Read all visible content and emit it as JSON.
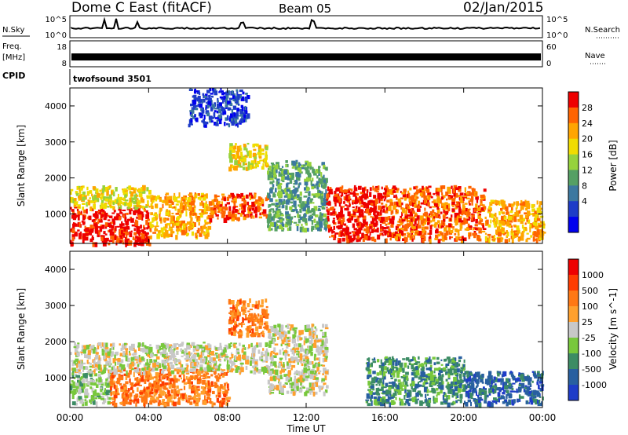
{
  "header": {
    "station": "Dome C East (fitACF)",
    "beam": "Beam 05",
    "date": "02/Jan/2015"
  },
  "top_panels": {
    "nsky_label": "N.Sky",
    "nsky_ticks": [
      "10^5",
      "10^0"
    ],
    "nsearch_label": "N.Search",
    "nsearch_ticks": [
      "10^5",
      "10^0"
    ],
    "freq_label": "Freq.",
    "freq_unit": "[MHz]",
    "freq_ticks": [
      "18",
      "8"
    ],
    "nave_label": "Nave",
    "nave_ticks": [
      "60",
      "0"
    ],
    "cpid_label": "CPID",
    "cpid_value": "twofsound 3501"
  },
  "colors": {
    "power_scale": [
      "#0000ee",
      "#1e3cc8",
      "#3c78a0",
      "#55a064",
      "#96d23c",
      "#f0dc00",
      "#ffa500",
      "#ff6400",
      "#ee0000"
    ],
    "velocity_scale": [
      "#1e3cc8",
      "#285fa0",
      "#3c8c64",
      "#78c83c",
      "#c8c8c8",
      "#ffa02d",
      "#ff7814",
      "#ff3c00",
      "#ee0000"
    ]
  },
  "chart_data": [
    {
      "type": "heatmap",
      "name": "power-panel",
      "xlabel": "",
      "ylabel": "Slant Range [km]",
      "x_ticks": [
        "00:00",
        "04:00",
        "08:00",
        "12:00",
        "16:00",
        "20:00",
        "00:00"
      ],
      "y_ticks": [
        1000,
        2000,
        3000,
        4000
      ],
      "xlim": [
        0,
        24
      ],
      "ylim": [
        180,
        4500
      ],
      "colorbar": {
        "label": "Power [dB]",
        "ticks": [
          "28",
          "24",
          "20",
          "16",
          "12",
          "8",
          "4"
        ]
      },
      "regions": [
        {
          "x": [
            0,
            4
          ],
          "y": [
            200,
            1200
          ],
          "level": 8
        },
        {
          "x": [
            0,
            4
          ],
          "y": [
            1200,
            1800
          ],
          "level": 5
        },
        {
          "x": [
            4,
            7
          ],
          "y": [
            400,
            1600
          ],
          "level": 6
        },
        {
          "x": [
            7,
            10
          ],
          "y": [
            900,
            1600
          ],
          "level": 7
        },
        {
          "x": [
            8,
            10
          ],
          "y": [
            2300,
            3000
          ],
          "level": 5
        },
        {
          "x": [
            6,
            9
          ],
          "y": [
            3500,
            4500
          ],
          "level": 1
        },
        {
          "x": [
            10,
            13
          ],
          "y": [
            600,
            2500
          ],
          "level": 3
        },
        {
          "x": [
            13,
            16
          ],
          "y": [
            300,
            1800
          ],
          "level": 8
        },
        {
          "x": [
            16,
            21
          ],
          "y": [
            300,
            1800
          ],
          "level": 7
        },
        {
          "x": [
            21,
            24
          ],
          "y": [
            300,
            1400
          ],
          "level": 6
        }
      ]
    },
    {
      "type": "heatmap",
      "name": "velocity-panel",
      "xlabel": "Time UT",
      "ylabel": "Slant Range [km]",
      "x_ticks": [
        "00:00",
        "04:00",
        "08:00",
        "12:00",
        "16:00",
        "20:00",
        "00:00"
      ],
      "y_ticks": [
        1000,
        2000,
        3000,
        4000
      ],
      "xlim": [
        0,
        24
      ],
      "ylim": [
        180,
        4500
      ],
      "colorbar": {
        "label": "Velocity [m s^-1]",
        "ticks": [
          "1000",
          "500",
          "100",
          "25",
          "-25",
          "-100",
          "-500",
          "-1000"
        ]
      },
      "regions": [
        {
          "x": [
            0,
            2
          ],
          "y": [
            300,
            1200
          ],
          "level": 3
        },
        {
          "x": [
            2,
            8
          ],
          "y": [
            300,
            1300
          ],
          "level": 6
        },
        {
          "x": [
            0,
            10
          ],
          "y": [
            1200,
            2000
          ],
          "level": 4
        },
        {
          "x": [
            8,
            10
          ],
          "y": [
            2200,
            3200
          ],
          "level": 6
        },
        {
          "x": [
            10,
            13
          ],
          "y": [
            600,
            2500
          ],
          "level": 4
        },
        {
          "x": [
            15,
            20
          ],
          "y": [
            300,
            1600
          ],
          "level": 2
        },
        {
          "x": [
            20,
            24
          ],
          "y": [
            300,
            1200
          ],
          "level": 1
        }
      ]
    }
  ]
}
